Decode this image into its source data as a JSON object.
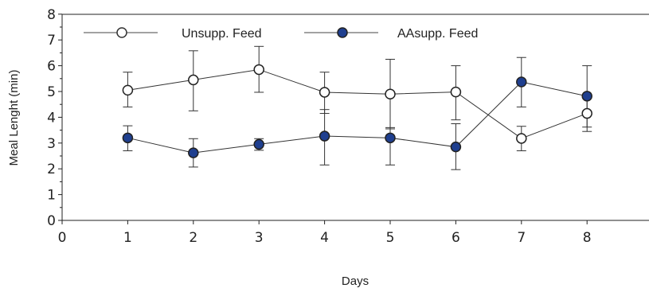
{
  "chart_data": {
    "type": "line",
    "xlabel": "Days",
    "ylabel": "Meal Lenght (min)",
    "xlim": [
      0,
      8.9
    ],
    "ylim": [
      0,
      8
    ],
    "x_ticks": [
      "0",
      "1",
      "2",
      "3",
      "4",
      "5",
      "6",
      "7",
      "8"
    ],
    "y_ticks": [
      "0",
      "1",
      "2",
      "3",
      "4",
      "5",
      "6",
      "7",
      "8"
    ],
    "x": [
      1,
      2,
      3,
      4,
      5,
      6,
      7,
      8
    ],
    "legend_position": "top-left",
    "grid": false,
    "series": [
      {
        "name": "Unsupp. Feed",
        "marker": "open-circle",
        "color": "#ffffff",
        "values": [
          5.05,
          5.45,
          5.85,
          4.97,
          4.9,
          4.98,
          3.18,
          4.15
        ],
        "err_low": [
          4.4,
          4.25,
          4.97,
          4.15,
          3.55,
          3.9,
          2.7,
          3.45
        ],
        "err_high": [
          5.75,
          6.58,
          6.75,
          5.75,
          6.25,
          6.0,
          3.65,
          4.75
        ]
      },
      {
        "name": "AAsupp. Feed",
        "marker": "filled-circle",
        "color": "#1f3f8f",
        "values": [
          3.2,
          2.62,
          2.95,
          3.27,
          3.2,
          2.85,
          5.37,
          4.82
        ],
        "err_low": [
          2.7,
          2.07,
          2.72,
          2.15,
          2.15,
          1.97,
          4.4,
          3.62
        ],
        "err_high": [
          3.67,
          3.17,
          3.17,
          4.3,
          3.6,
          3.75,
          6.32,
          6.0
        ]
      }
    ]
  }
}
